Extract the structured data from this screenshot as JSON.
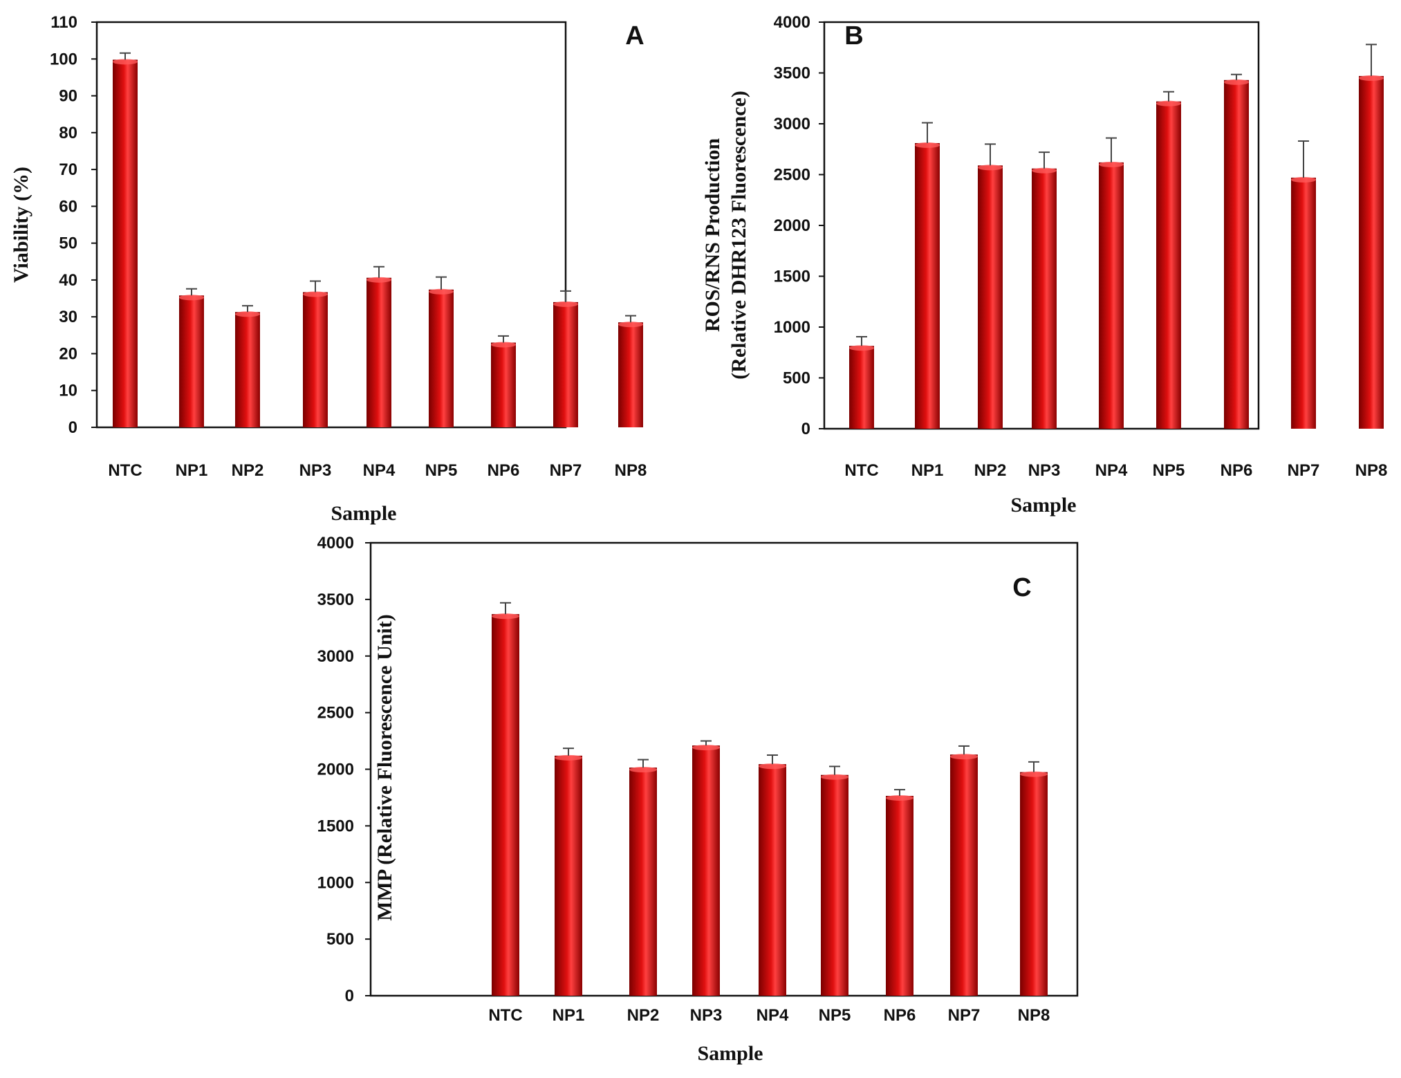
{
  "colors": {
    "bar": "#c00000",
    "bar_dark": "#7a0000",
    "bar_light": "#ff5a5a",
    "axis": "#111111"
  },
  "chart_data": [
    {
      "type": "bar",
      "panel": "A",
      "categories": [
        "NTC",
        "NP1",
        "NP2",
        "NP3",
        "NP4",
        "NP5",
        "NP6",
        "NP7",
        "NP8"
      ],
      "values": [
        99.8,
        35.8,
        31.3,
        36.7,
        40.6,
        37.4,
        23.0,
        34.0,
        28.5
      ],
      "errors": [
        1.8,
        1.8,
        1.7,
        3.0,
        3.0,
        3.4,
        1.8,
        3.0,
        1.8
      ],
      "title": "",
      "xlabel": "Sample",
      "ylabel": "Viability (%)",
      "ylim": [
        0,
        110
      ],
      "yticks": [
        "0",
        "10",
        "20",
        "30",
        "40",
        "50",
        "60",
        "70",
        "80",
        "90",
        "100",
        "110"
      ]
    },
    {
      "type": "bar",
      "panel": "B",
      "categories": [
        "NTC",
        "NP1",
        "NP2",
        "NP3",
        "NP4",
        "NP5",
        "NP6",
        "NP7",
        "NP8"
      ],
      "values": [
        815,
        2810,
        2590,
        2560,
        2620,
        3220,
        3430,
        2470,
        3470
      ],
      "errors": [
        90,
        200,
        210,
        160,
        240,
        95,
        55,
        360,
        310
      ],
      "title": "",
      "xlabel": "Sample",
      "ylabel_lines": [
        "ROS/RNS Production",
        "(Relative DHR123 Fluorescence)"
      ],
      "ylim": [
        0,
        4000
      ],
      "yticks": [
        "0",
        "500",
        "1000",
        "1500",
        "2000",
        "2500",
        "3000",
        "3500",
        "4000"
      ]
    },
    {
      "type": "bar",
      "panel": "C",
      "categories": [
        "NTC",
        "NP1",
        "NP2",
        "NP3",
        "NP4",
        "NP5",
        "NP6",
        "NP7",
        "NP8"
      ],
      "values": [
        3370,
        2120,
        2015,
        2210,
        2045,
        1950,
        1765,
        2130,
        1975
      ],
      "errors": [
        100,
        65,
        70,
        40,
        80,
        75,
        55,
        75,
        90
      ],
      "title": "",
      "xlabel": "Sample",
      "ylabel": "MMP (Relative Fluorescence Unit)",
      "ylim": [
        0,
        4000
      ],
      "yticks": [
        "0",
        "500",
        "1000",
        "1500",
        "2000",
        "2500",
        "3000",
        "3500",
        "4000"
      ]
    }
  ]
}
